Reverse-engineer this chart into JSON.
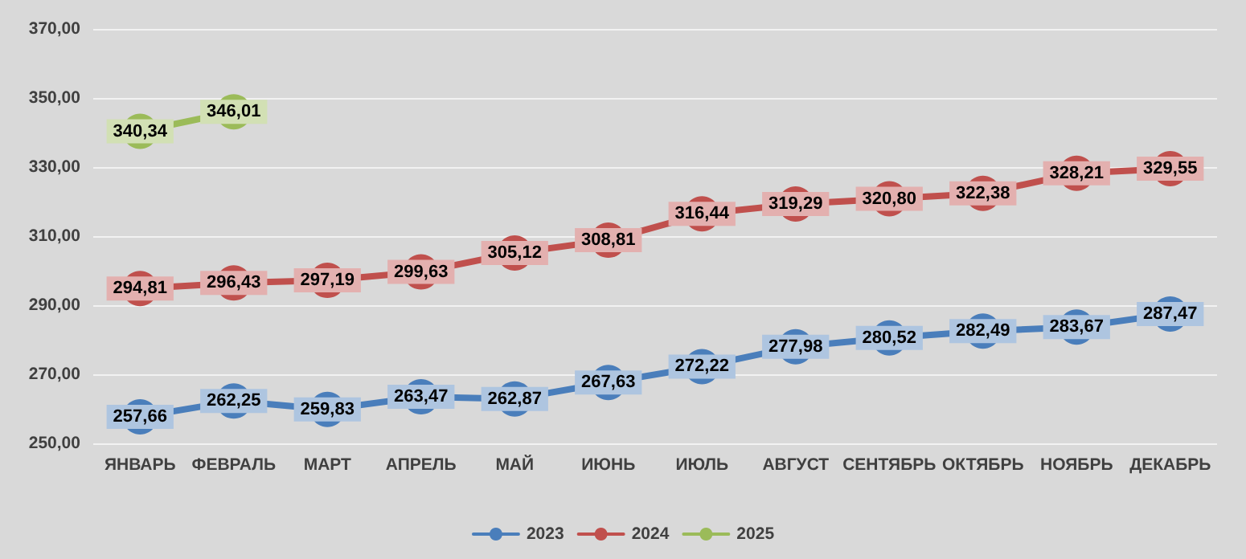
{
  "chart_data": {
    "type": "line",
    "categories": [
      "ЯНВАРЬ",
      "ФЕВРАЛЬ",
      "МАРТ",
      "АПРЕЛЬ",
      "МАЙ",
      "ИЮНЬ",
      "ИЮЛЬ",
      "АВГУСТ",
      "СЕНТЯБРЬ",
      "ОКТЯБРЬ",
      "НОЯБРЬ",
      "ДЕКАБРЬ"
    ],
    "series": [
      {
        "name": "2023",
        "color": "#4a7ebb",
        "values": [
          257.66,
          262.25,
          259.83,
          263.47,
          262.87,
          267.63,
          272.22,
          277.98,
          280.52,
          282.49,
          283.67,
          287.47
        ],
        "value_labels": [
          "257,66",
          "262,25",
          "259,83",
          "263,47",
          "262,87",
          "267,63",
          "272,22",
          "277,98",
          "280,52",
          "282,49",
          "283,67",
          "287,47"
        ]
      },
      {
        "name": "2024",
        "color": "#c0504d",
        "values": [
          294.81,
          296.43,
          297.19,
          299.63,
          305.12,
          308.81,
          316.44,
          319.29,
          320.8,
          322.38,
          328.21,
          329.55
        ],
        "value_labels": [
          "294,81",
          "296,43",
          "297,19",
          "299,63",
          "305,12",
          "308,81",
          "316,44",
          "319,29",
          "320,80",
          "322,38",
          "328,21",
          "329,55"
        ]
      },
      {
        "name": "2025",
        "color": "#9bbb59",
        "values": [
          340.34,
          346.01,
          null,
          null,
          null,
          null,
          null,
          null,
          null,
          null,
          null,
          null
        ],
        "value_labels": [
          "340,34",
          "346,01",
          null,
          null,
          null,
          null,
          null,
          null,
          null,
          null,
          null,
          null
        ]
      }
    ],
    "ylim": [
      250,
      370
    ],
    "yticks": [
      {
        "value": 250,
        "label": "250,00"
      },
      {
        "value": 270,
        "label": "270,00"
      },
      {
        "value": 290,
        "label": "290,00"
      },
      {
        "value": 310,
        "label": "310,00"
      },
      {
        "value": 330,
        "label": "330,00"
      },
      {
        "value": 350,
        "label": "350,00"
      },
      {
        "value": 370,
        "label": "370,00"
      }
    ],
    "grid": "y",
    "legend": "bottom",
    "marker": "circle",
    "line_style": "solid"
  }
}
